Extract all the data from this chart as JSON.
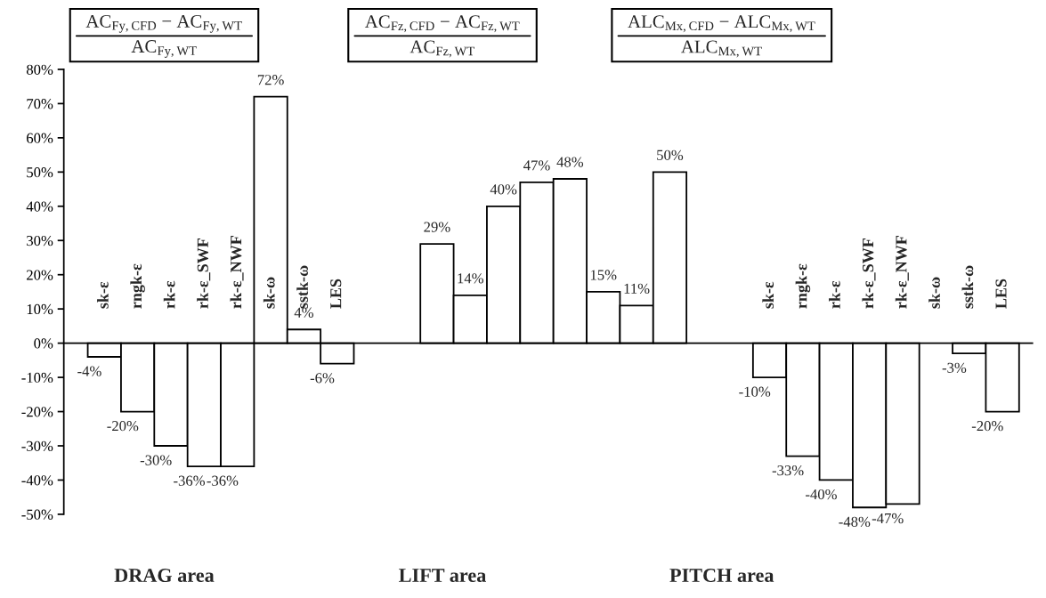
{
  "chart_data": {
    "type": "bar",
    "categories": [
      "sk-ε",
      "rngk-ε",
      "rk-ε",
      "rk-ε_SWF",
      "rk-ε_NWF",
      "sk-ω",
      "sstk-ω",
      "LES",
      null,
      null,
      null,
      null,
      null,
      null,
      null,
      null,
      null,
      null,
      null,
      null,
      "sk-ε",
      "rngk-ε",
      "rk-ε",
      "rk-ε_SWF",
      "rk-ε_NWF",
      "sk-ω",
      "sstk-ω",
      "LES"
    ],
    "values": [
      -4,
      -20,
      -30,
      -36,
      -36,
      72,
      4,
      -6,
      null,
      null,
      29,
      14,
      40,
      47,
      48,
      15,
      11,
      50,
      null,
      null,
      -10,
      -33,
      -40,
      -48,
      -47,
      null,
      -3,
      -20
    ],
    "value_labels": [
      "-4%",
      "-20%",
      "-30%",
      "-36%",
      "-36%",
      "72%",
      "4%",
      "-6%",
      null,
      null,
      "29%",
      "14%",
      "40%",
      "47%",
      "48%",
      "15%",
      "11%",
      "50%",
      null,
      null,
      "-10%",
      "-33%",
      "-40%",
      "-48%",
      "-47%",
      null,
      "-3%",
      "-20%"
    ],
    "color": "#ffffff",
    "ylim": [
      -50,
      80
    ],
    "yticks": [
      {
        "value": -50,
        "label": "-50%"
      },
      {
        "value": -40,
        "label": "-40%"
      },
      {
        "value": -30,
        "label": "-30%"
      },
      {
        "value": -20,
        "label": "-20%"
      },
      {
        "value": -10,
        "label": "-10%"
      },
      {
        "value": 0,
        "label": "0%"
      },
      {
        "value": 10,
        "label": "10%"
      },
      {
        "value": 20,
        "label": "20%"
      },
      {
        "value": 30,
        "label": "30%"
      },
      {
        "value": 40,
        "label": "40%"
      },
      {
        "value": 50,
        "label": "50%"
      },
      {
        "value": 60,
        "label": "60%"
      },
      {
        "value": 70,
        "label": "70%"
      },
      {
        "value": 80,
        "label": "80%"
      }
    ],
    "grid": false,
    "legend": false,
    "annotations": [
      "AC$_{Fy,CFD}$ − AC$_{Fy,WT}$",
      "AC$_{Fy,WT}$",
      "AC$_{Fz,CFD}$ − AC$_{Fz,WT}$",
      "AC$_{Fz,WT}$",
      "ALC$_{Mx,CFD}$ − ALC$_{Mx,WT}$",
      "ALC$_{Mx,WT}$",
      "DRAG area",
      "LIFT area",
      "PITCH area"
    ]
  }
}
